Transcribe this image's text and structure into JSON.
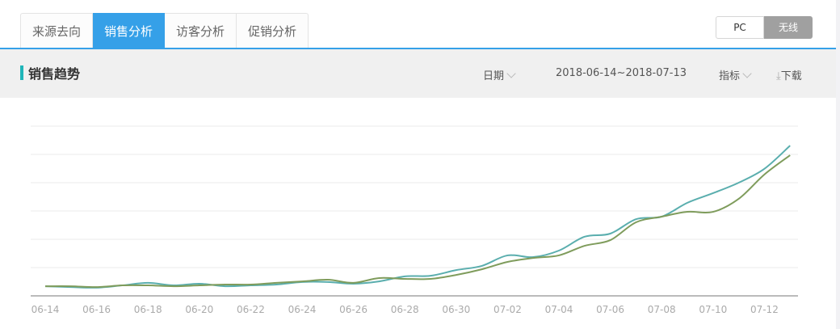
{
  "tabs": [
    {
      "label": "来源去向"
    },
    {
      "label": "销售分析",
      "active": true
    },
    {
      "label": "访客分析"
    },
    {
      "label": "促销分析"
    }
  ],
  "device_switch": {
    "pc": "PC",
    "wireless": "无线",
    "selected": "无线"
  },
  "section": {
    "title": "销售趋势",
    "date_label": "日期",
    "date_range": "2018-06-14~2018-07-13",
    "metric_label": "指标",
    "download_label": "下载"
  },
  "colors": {
    "accent": "#35a0e8",
    "title_mark": "#1fb5b8",
    "series_1": "#5aaeae",
    "series_2": "#7f9c5c"
  },
  "chart_data": {
    "type": "line",
    "x": [
      "06-14",
      "06-15",
      "06-16",
      "06-17",
      "06-18",
      "06-19",
      "06-20",
      "06-21",
      "06-22",
      "06-23",
      "06-24",
      "06-25",
      "06-26",
      "06-27",
      "06-28",
      "06-29",
      "06-30",
      "07-01",
      "07-02",
      "07-03",
      "07-04",
      "07-05",
      "07-06",
      "07-07",
      "07-08",
      "07-09",
      "07-10",
      "07-11",
      "07-12",
      "07-13"
    ],
    "tick_labels": [
      "06-14",
      "06-16",
      "06-18",
      "06-20",
      "06-22",
      "06-24",
      "06-26",
      "06-28",
      "06-30",
      "07-02",
      "07-04",
      "07-06",
      "07-08",
      "07-10",
      "07-12"
    ],
    "series": [
      {
        "values": [
          0.34,
          0.31,
          0.29,
          0.37,
          0.46,
          0.37,
          0.43,
          0.34,
          0.37,
          0.4,
          0.49,
          0.49,
          0.43,
          0.51,
          0.69,
          0.71,
          0.91,
          1.06,
          1.43,
          1.37,
          1.6,
          2.09,
          2.2,
          2.71,
          2.8,
          3.29,
          3.63,
          4.0,
          4.49,
          5.31
        ]
      },
      {
        "values": [
          0.34,
          0.34,
          0.31,
          0.37,
          0.37,
          0.34,
          0.37,
          0.4,
          0.4,
          0.46,
          0.51,
          0.57,
          0.46,
          0.63,
          0.6,
          0.6,
          0.74,
          0.94,
          1.2,
          1.34,
          1.43,
          1.77,
          1.97,
          2.6,
          2.8,
          2.97,
          2.97,
          3.43,
          4.29,
          4.97
        ]
      }
    ],
    "ylim": [
      0,
      6
    ],
    "grid": true,
    "y_tick_labels_shown": false,
    "legend": "none"
  }
}
